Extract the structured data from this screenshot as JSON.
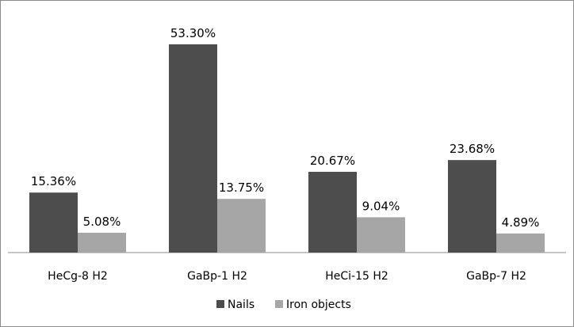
{
  "chart_data": {
    "type": "bar",
    "categories": [
      "HeCg-8 H2",
      "GaBp-1 H2",
      "HeCi-15 H2",
      "GaBp-7 H2"
    ],
    "series": [
      {
        "name": "Nails",
        "values": [
          15.36,
          53.3,
          20.67,
          23.68
        ],
        "labels": [
          "15.36%",
          "53.30%",
          "20.67%",
          "23.68%"
        ],
        "color": "#4d4d4d"
      },
      {
        "name": "Iron objects",
        "values": [
          5.08,
          13.75,
          9.04,
          4.89
        ],
        "labels": [
          "5.08%",
          "13.75%",
          "9.04%",
          "4.89%"
        ],
        "color": "#a6a6a6"
      }
    ],
    "ylim": [
      0,
      56
    ],
    "grid": false,
    "legend_position": "bottom",
    "show_y_axis": false
  }
}
